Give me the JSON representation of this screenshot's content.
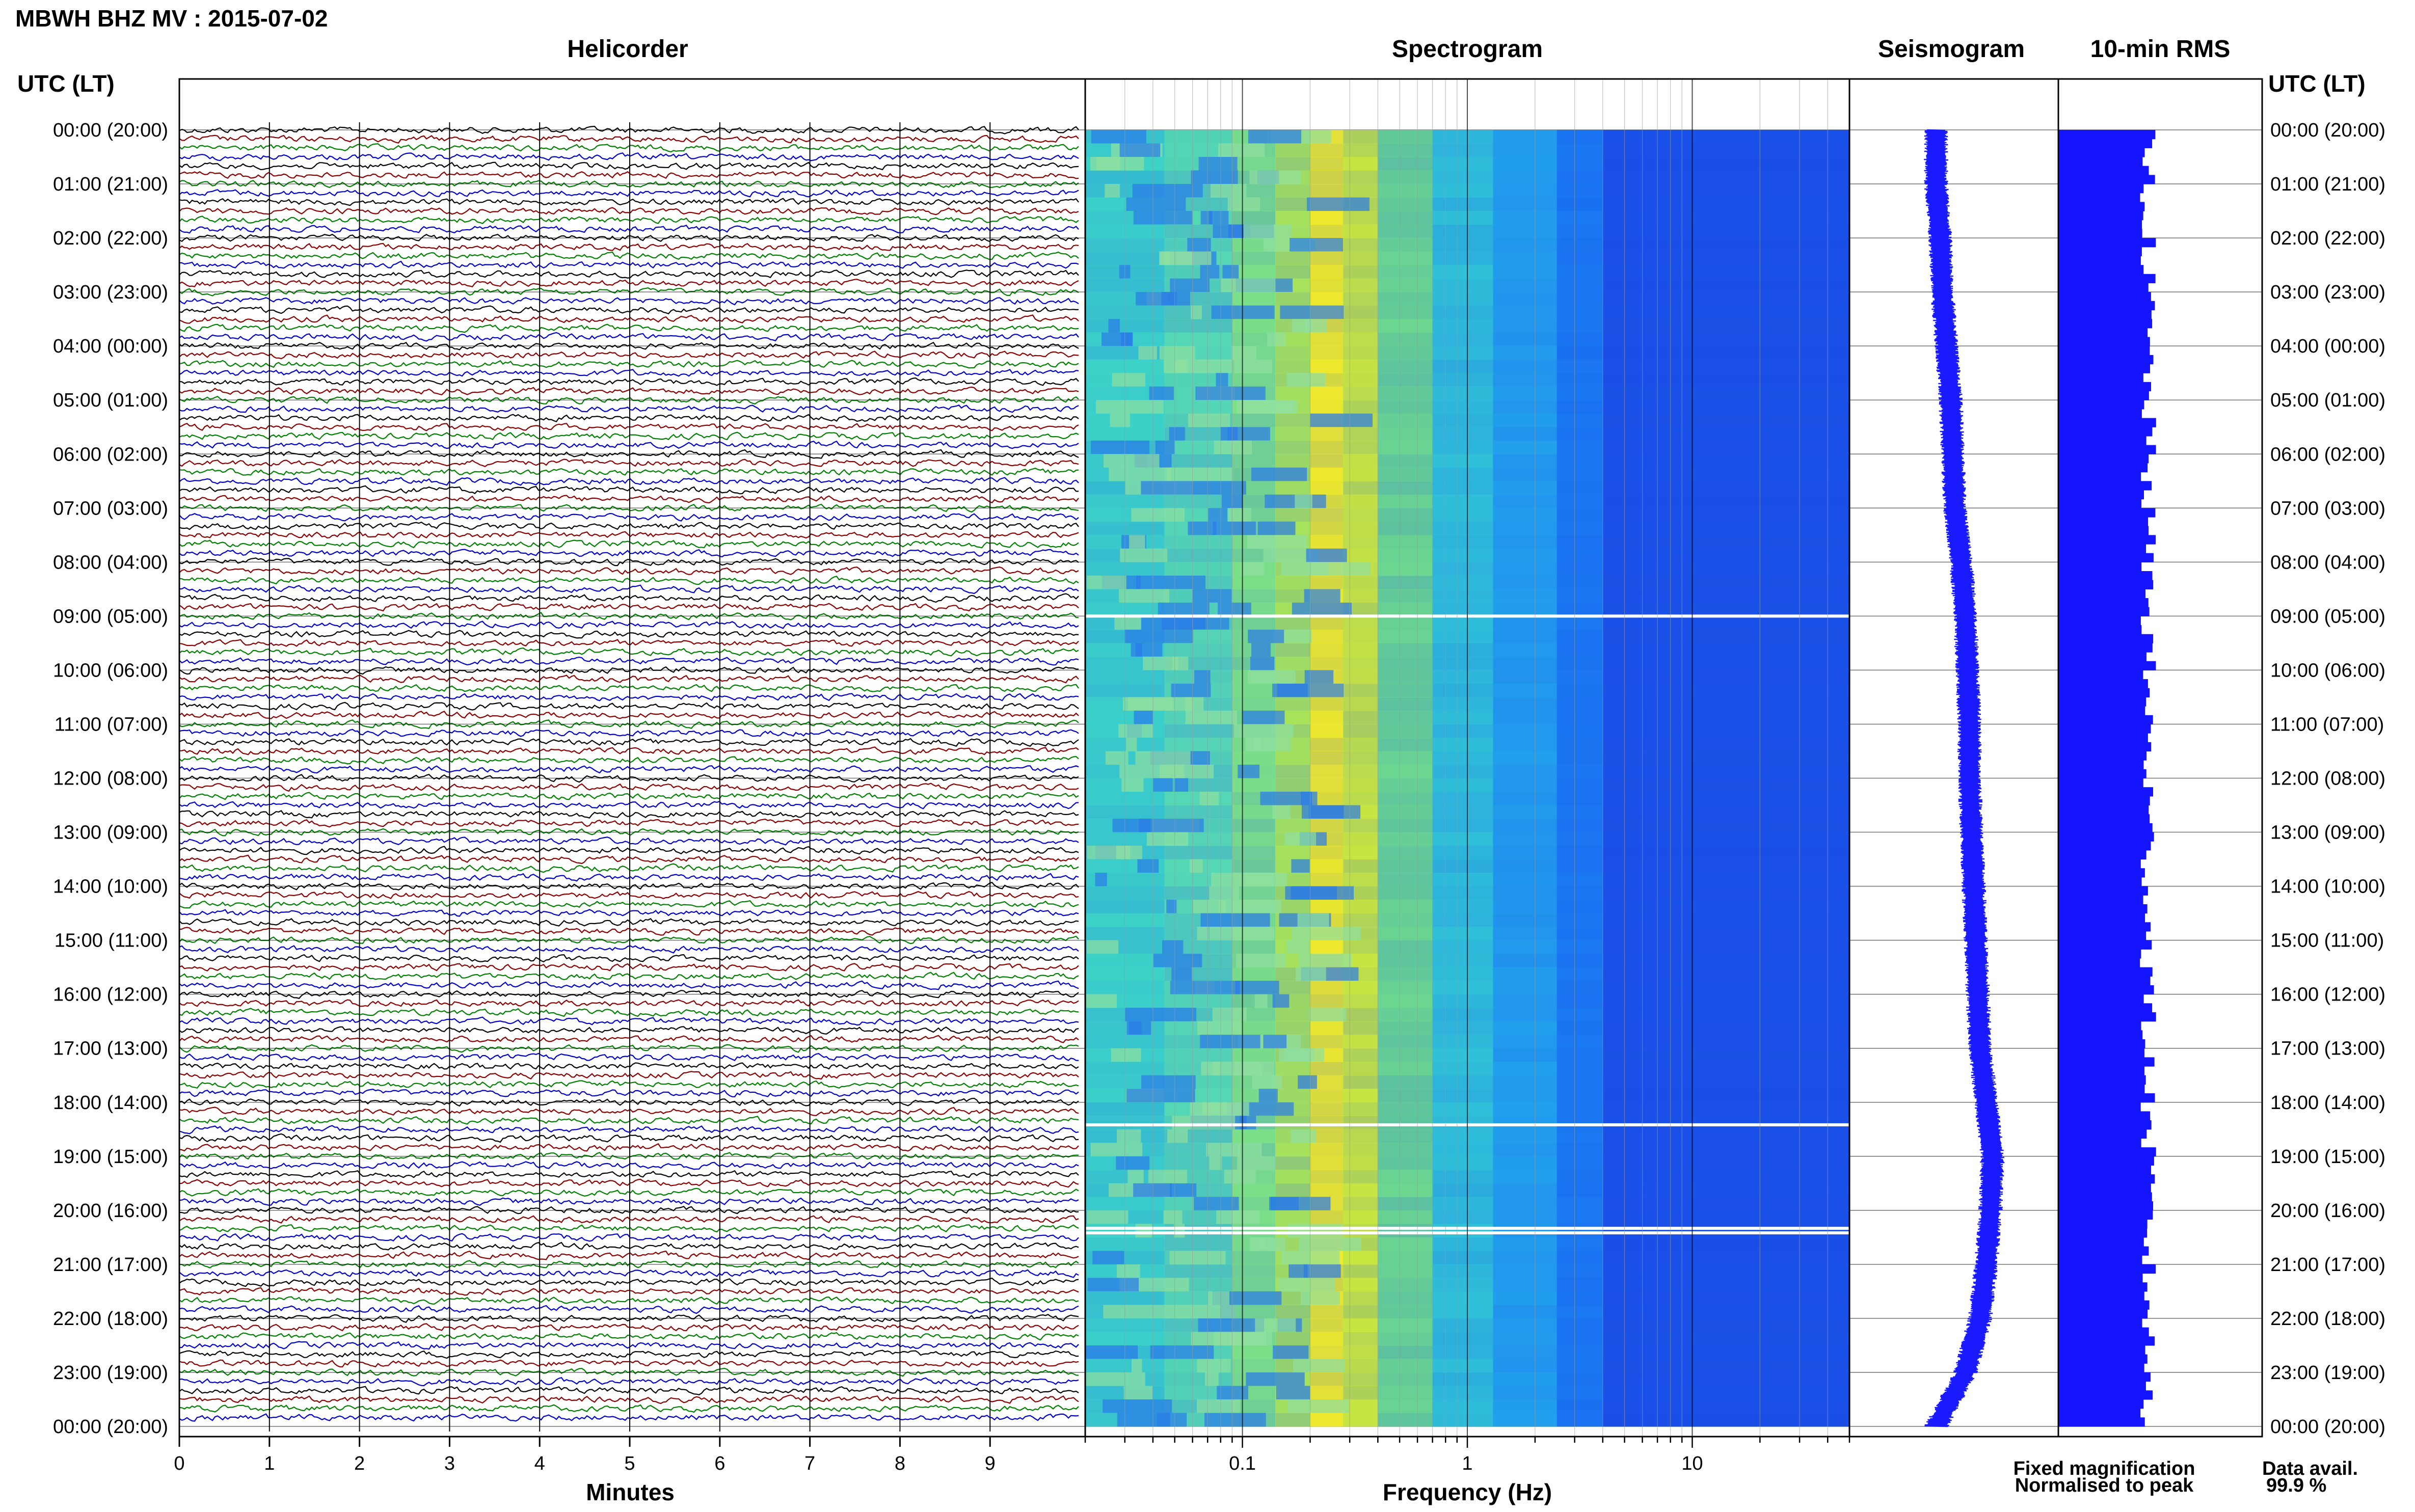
{
  "header": {
    "title": "MBWH BHZ MV : 2015-07-02"
  },
  "panels": {
    "helicorder": "Helicorder",
    "spectrogram": "Spectrogram",
    "seismogram": "Seismogram",
    "rms": "10-min RMS"
  },
  "axis": {
    "utc_lt_left": "UTC (LT)",
    "utc_lt_right": "UTC (LT)",
    "minutes_label": "Minutes",
    "frequency_label": "Frequency (Hz)"
  },
  "legend": {
    "fixed": "Fixed magnification",
    "normalised": "Normalised to peak",
    "fixed_color": "#1a1aff",
    "normalised_color": "#ff1a1a"
  },
  "data_avail": {
    "label": "Data avail.",
    "value": "99.9 %"
  },
  "colors": {
    "trace_cycle": [
      "#000000",
      "#8b0000",
      "#008000",
      "#0000cc"
    ],
    "rms_bar": "#1414ff",
    "seismogram": "#1a1aff"
  },
  "chart_data": [
    {
      "type": "line",
      "name": "helicorder",
      "title": "Helicorder",
      "xlabel": "Minutes",
      "xlim": [
        0,
        10
      ],
      "x_ticks": [
        "0",
        "1",
        "2",
        "3",
        "4",
        "5",
        "6",
        "7",
        "8",
        "9"
      ],
      "rows_per_hour": 6,
      "hours": 24,
      "y_ticks": [
        "00:00 (20:00)",
        "01:00 (21:00)",
        "02:00 (22:00)",
        "03:00 (23:00)",
        "04:00 (00:00)",
        "05:00 (01:00)",
        "06:00 (02:00)",
        "07:00 (03:00)",
        "08:00 (04:00)",
        "09:00 (05:00)",
        "10:00 (06:00)",
        "11:00 (07:00)",
        "12:00 (08:00)",
        "13:00 (09:00)",
        "14:00 (10:00)",
        "15:00 (11:00)",
        "16:00 (12:00)",
        "17:00 (13:00)",
        "18:00 (14:00)",
        "19:00 (15:00)",
        "20:00 (16:00)",
        "21:00 (17:00)",
        "22:00 (18:00)",
        "23:00 (19:00)",
        "00:00 (20:00)"
      ]
    },
    {
      "type": "heatmap",
      "name": "spectrogram",
      "title": "Spectrogram",
      "xlabel": "Frequency (Hz)",
      "x_scale": "log",
      "xlim": [
        0.02,
        50
      ],
      "x_ticks": [
        "0.1",
        "1",
        "10"
      ],
      "data_gaps_utc": [
        "09:00",
        "18:25",
        "20:20",
        "20:25"
      ]
    },
    {
      "type": "line",
      "name": "seismogram",
      "title": "Seismogram",
      "y_hours": [
        0,
        1,
        2,
        3,
        4,
        5,
        6,
        7,
        8,
        9,
        10,
        11,
        12,
        13,
        14,
        15,
        16,
        17,
        18,
        19,
        20,
        21,
        22,
        23,
        24
      ],
      "offset": [
        0.0,
        0.0,
        0.02,
        0.03,
        0.05,
        0.07,
        0.08,
        0.09,
        0.12,
        0.14,
        0.15,
        0.16,
        0.16,
        0.17,
        0.18,
        0.19,
        0.2,
        0.21,
        0.24,
        0.27,
        0.26,
        0.24,
        0.21,
        0.14,
        0.0
      ]
    },
    {
      "type": "bar",
      "name": "rms",
      "title": "10-min RMS",
      "hours": 24,
      "bins_per_hour": 6
    }
  ]
}
